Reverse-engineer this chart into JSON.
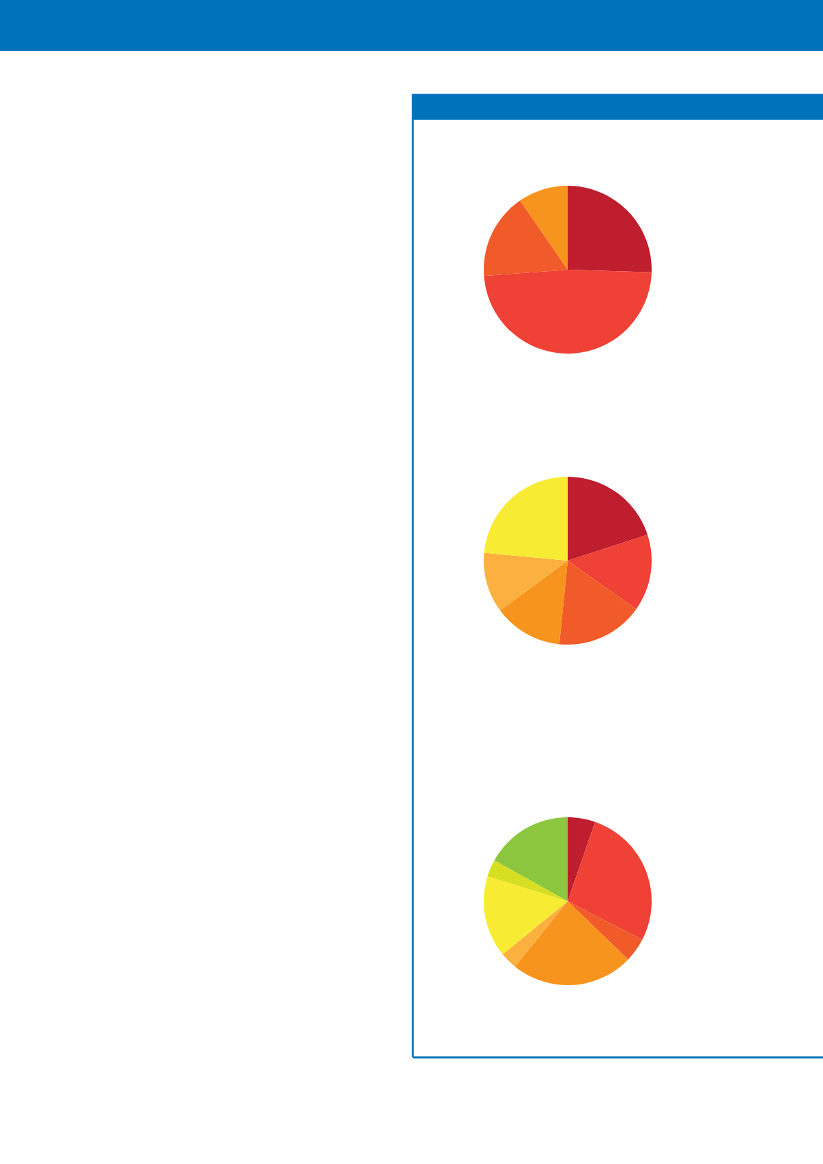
{
  "chart_data": [
    {
      "type": "pie",
      "categories": [
        null,
        null,
        null,
        null
      ],
      "values": [
        25.5,
        48.3,
        16.6,
        9.6
      ],
      "colors": [
        "#be1e2d",
        "#ef4136",
        "#f15a29",
        "#f7941d"
      ]
    },
    {
      "type": "pie",
      "categories": [
        null,
        null,
        null,
        null,
        null,
        null
      ],
      "values": [
        20.0,
        14.8,
        16.8,
        13.3,
        11.6,
        23.5
      ],
      "colors": [
        "#be1e2d",
        "#ef4136",
        "#f15a29",
        "#f7941d",
        "#fbb040",
        "#f7ec33"
      ]
    },
    {
      "type": "pie",
      "categories": [
        null,
        null,
        null,
        null,
        null,
        null,
        null,
        null
      ],
      "values": [
        5.3,
        27.3,
        4.6,
        23.6,
        3.3,
        15.7,
        3.3,
        16.9
      ],
      "colors": [
        "#be1e2d",
        "#ef4136",
        "#f15a29",
        "#f7941d",
        "#fbb040",
        "#f7ec33",
        "#d7df23",
        "#8dc63f"
      ]
    }
  ]
}
